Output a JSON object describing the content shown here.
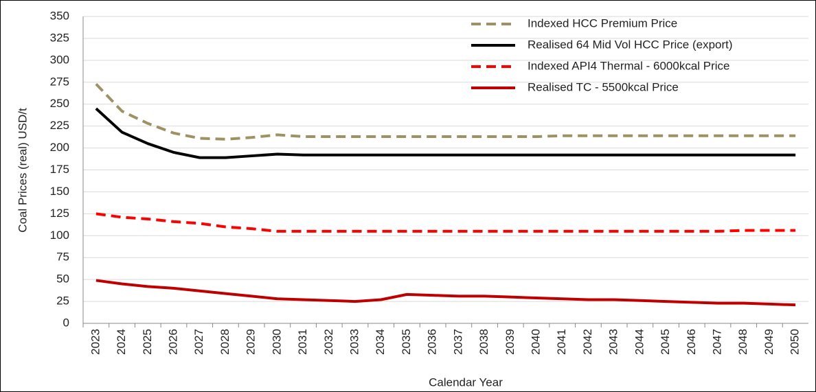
{
  "chart_data": {
    "type": "line",
    "x_label": "Calendar Year",
    "y_label": "Coal Prices (real) USD/t",
    "categories": [
      "2023",
      "2024",
      "2025",
      "2026",
      "2027",
      "2028",
      "2029",
      "2030",
      "2031",
      "2032",
      "2033",
      "2034",
      "2035",
      "2036",
      "2037",
      "2038",
      "2039",
      "2040",
      "2041",
      "2042",
      "2043",
      "2044",
      "2045",
      "2046",
      "2047",
      "2048",
      "2049",
      "2050"
    ],
    "series": [
      {
        "name": "Indexed HCC Premium Price",
        "color": "#9e9264",
        "dashed": true,
        "values": [
          273,
          242,
          228,
          217,
          211,
          210,
          212,
          215,
          213,
          213,
          213,
          213,
          213,
          213,
          213,
          213,
          213,
          213,
          214,
          214,
          214,
          214,
          214,
          214,
          214,
          214,
          214,
          214
        ]
      },
      {
        "name": "Realised 64 Mid Vol HCC Price (export)",
        "color": "#000000",
        "dashed": false,
        "values": [
          245,
          218,
          205,
          195,
          189,
          189,
          191,
          193,
          192,
          192,
          192,
          192,
          192,
          192,
          192,
          192,
          192,
          192,
          192,
          192,
          192,
          192,
          192,
          192,
          192,
          192,
          192,
          192
        ]
      },
      {
        "name": "Indexed API4 Thermal - 6000kcal Price",
        "color": "#ff0000",
        "dashed": true,
        "values": [
          125,
          121,
          119,
          116,
          114,
          110,
          108,
          105,
          105,
          105,
          105,
          105,
          105,
          105,
          105,
          105,
          105,
          105,
          105,
          105,
          105,
          105,
          105,
          105,
          105,
          106,
          106,
          106
        ]
      },
      {
        "name": "Realised TC - 5500kcal Price",
        "color": "#c00000",
        "dashed": false,
        "values": [
          49,
          45,
          42,
          40,
          37,
          34,
          31,
          28,
          27,
          26,
          25,
          27,
          33,
          32,
          31,
          31,
          30,
          29,
          28,
          27,
          27,
          26,
          25,
          24,
          23,
          23,
          22,
          21
        ]
      }
    ],
    "ylim": [
      0,
      350
    ],
    "yticks": [
      0,
      25,
      50,
      75,
      100,
      125,
      150,
      175,
      200,
      225,
      250,
      275,
      300,
      325,
      350
    ],
    "grid": true,
    "legend": "upper right"
  }
}
